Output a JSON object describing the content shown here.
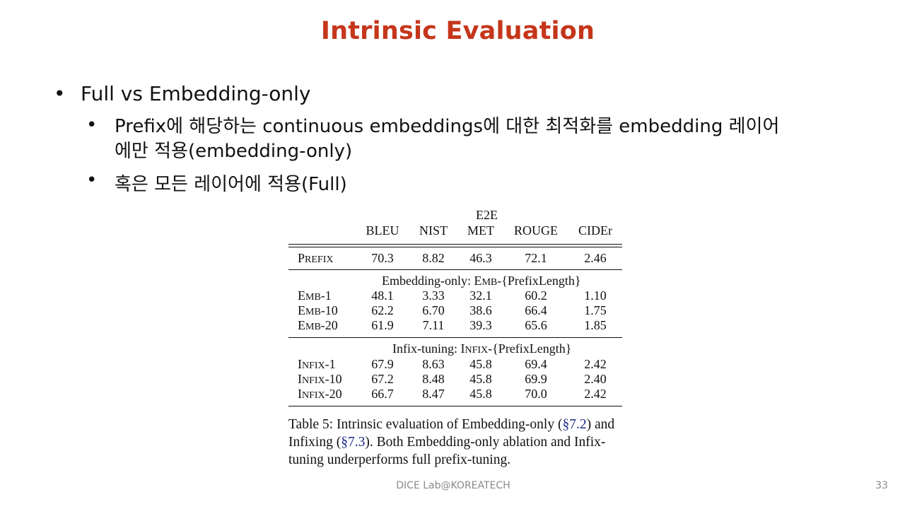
{
  "slide": {
    "title": "Intrinsic Evaluation",
    "bullets": [
      {
        "text": "Full vs Embedding-only",
        "children": [
          {
            "text": "Prefix에 해당하는 continuous embeddings에 대한 최적화를 embedding 레이어에만 적용(embedding-only)"
          },
          {
            "text": "혹은 모든 레이어에 적용(Full)"
          }
        ]
      }
    ],
    "bullet_char": "•",
    "footer": "DICE  Lab@KOREATECH",
    "page_number": "33"
  },
  "table": {
    "group_header": "E2E",
    "columns": [
      "BLEU",
      "NIST",
      "MET",
      "ROUGE",
      "CIDEr"
    ],
    "prefix_row": {
      "label_big": "P",
      "label_small": "REFIX",
      "values": [
        "70.3",
        "8.82",
        "46.3",
        "72.1",
        "2.46"
      ]
    },
    "emb_section": {
      "title_pre": "Embedding-only: ",
      "title_big": "E",
      "title_small": "MB",
      "title_post": "-{PrefixLength}",
      "rows": [
        {
          "label_big": "E",
          "label_small": "MB",
          "label_suffix": "-1",
          "values": [
            "48.1",
            "3.33",
            "32.1",
            "60.2",
            "1.10"
          ]
        },
        {
          "label_big": "E",
          "label_small": "MB",
          "label_suffix": "-10",
          "values": [
            "62.2",
            "6.70",
            "38.6",
            "66.4",
            "1.75"
          ]
        },
        {
          "label_big": "E",
          "label_small": "MB",
          "label_suffix": "-20",
          "values": [
            "61.9",
            "7.11",
            "39.3",
            "65.6",
            "1.85"
          ]
        }
      ]
    },
    "infix_section": {
      "title_pre": "Infix-tuning: ",
      "title_big": "I",
      "title_small": "NFIX",
      "title_post": "-{PrefixLength}",
      "rows": [
        {
          "label_big": "I",
          "label_small": "NFIX",
          "label_suffix": "-1",
          "values": [
            "67.9",
            "8.63",
            "45.8",
            "69.4",
            "2.42"
          ]
        },
        {
          "label_big": "I",
          "label_small": "NFIX",
          "label_suffix": "-10",
          "values": [
            "67.2",
            "8.48",
            "45.8",
            "69.9",
            "2.40"
          ]
        },
        {
          "label_big": "I",
          "label_small": "NFIX",
          "label_suffix": "-20",
          "values": [
            "66.7",
            "8.47",
            "45.8",
            "70.0",
            "2.42"
          ]
        }
      ]
    },
    "caption": {
      "part1": "Table 5:  Intrinsic evaluation of Embedding-only (",
      "ref1": "§7.2",
      "part2": ") and Infixing (",
      "ref2": "§7.3",
      "part3": ").  Both Embedding-only ablation and Infix-tuning underperforms full prefix-tuning."
    }
  },
  "colors": {
    "title": "#c5361b",
    "text": "#111111",
    "footer": "#8a8a8a",
    "link": "#1f2a8a"
  }
}
